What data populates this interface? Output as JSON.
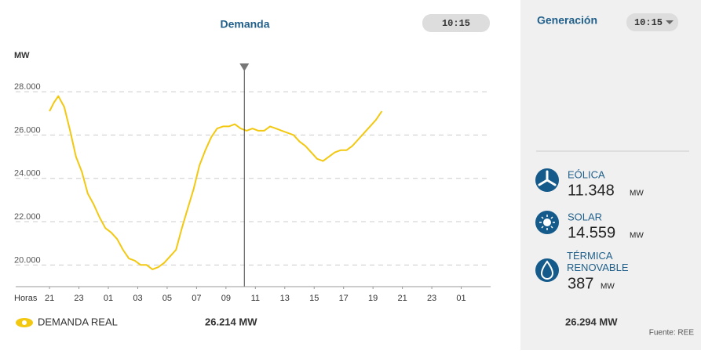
{
  "chart_data": {
    "type": "line",
    "title": "Demanda",
    "time_label": "10:15",
    "ylabel": "MW",
    "xlabel": "Horas",
    "x": [
      0,
      0.3,
      0.6,
      1.0,
      1.4,
      1.8,
      2.2,
      2.6,
      3.0,
      3.4,
      3.8,
      4.2,
      4.6,
      5.0,
      5.4,
      5.8,
      6.2,
      6.6,
      7.0,
      7.4,
      7.8,
      8.2,
      8.6,
      9.0,
      9.4,
      9.8,
      10.2,
      10.6,
      11.0,
      11.4,
      11.8,
      12.2,
      12.6,
      13.0,
      13.4,
      13.8,
      14.2,
      14.6,
      15.0,
      15.4,
      15.8,
      16.2,
      16.6,
      17.0,
      17.4,
      17.8,
      18.2,
      18.6,
      19.0,
      19.4,
      19.8,
      20.2,
      20.6,
      21.0,
      21.4,
      21.8,
      22.2,
      22.6
    ],
    "series": [
      {
        "name": "DEMANDA REAL",
        "color": "#f2c811",
        "values": [
          27100,
          27500,
          27800,
          27300,
          26200,
          25000,
          24300,
          23300,
          22800,
          22200,
          21700,
          21500,
          21200,
          20700,
          20300,
          20200,
          20000,
          20000,
          19800,
          19900,
          20100,
          20400,
          20700,
          21700,
          22600,
          23500,
          24600,
          25300,
          25900,
          26300,
          26400,
          26400,
          26500,
          26300,
          26200,
          26300,
          26200,
          26200,
          26400,
          26300,
          26200,
          26100,
          26000,
          25700,
          25500,
          25200,
          24900,
          24800,
          25000,
          25200,
          25300,
          25300,
          25500,
          25800,
          26100,
          26400,
          26700,
          27100
        ]
      }
    ],
    "legend_value": "26.214 MW",
    "marker_x": 13.25,
    "xlim": [
      -2.3,
      30
    ],
    "xticks": [
      {
        "value": 0,
        "label": "21"
      },
      {
        "value": 2,
        "label": "23"
      },
      {
        "value": 4,
        "label": "01"
      },
      {
        "value": 6,
        "label": "03"
      },
      {
        "value": 8,
        "label": "05"
      },
      {
        "value": 10,
        "label": "07"
      },
      {
        "value": 12,
        "label": "09"
      },
      {
        "value": 14,
        "label": "11"
      },
      {
        "value": 16,
        "label": "13"
      },
      {
        "value": 18,
        "label": "15"
      },
      {
        "value": 20,
        "label": "17"
      },
      {
        "value": 22,
        "label": "19"
      },
      {
        "value": 24,
        "label": "21"
      },
      {
        "value": 26,
        "label": "23"
      },
      {
        "value": 28,
        "label": "01"
      }
    ],
    "ylim": [
      19000,
      28800
    ],
    "yticks": [
      {
        "value": 20000,
        "label": "20.000"
      },
      {
        "value": 22000,
        "label": "22.000"
      },
      {
        "value": 24000,
        "label": "24.000"
      },
      {
        "value": 26000,
        "label": "26.000"
      },
      {
        "value": 28000,
        "label": "28.000"
      }
    ],
    "grid": true
  },
  "generation": {
    "title": "Generación",
    "time": "10:15",
    "sources": [
      {
        "name": "EÓLICA",
        "value": "11.348",
        "unit": "MW"
      },
      {
        "name": "SOLAR",
        "value": "14.559",
        "unit": "MW"
      },
      {
        "name": "TÉRMICA RENOVABLE",
        "value": "387",
        "unit": "MW"
      }
    ],
    "total": "26.294 MW",
    "source": "Fuente: REE"
  }
}
